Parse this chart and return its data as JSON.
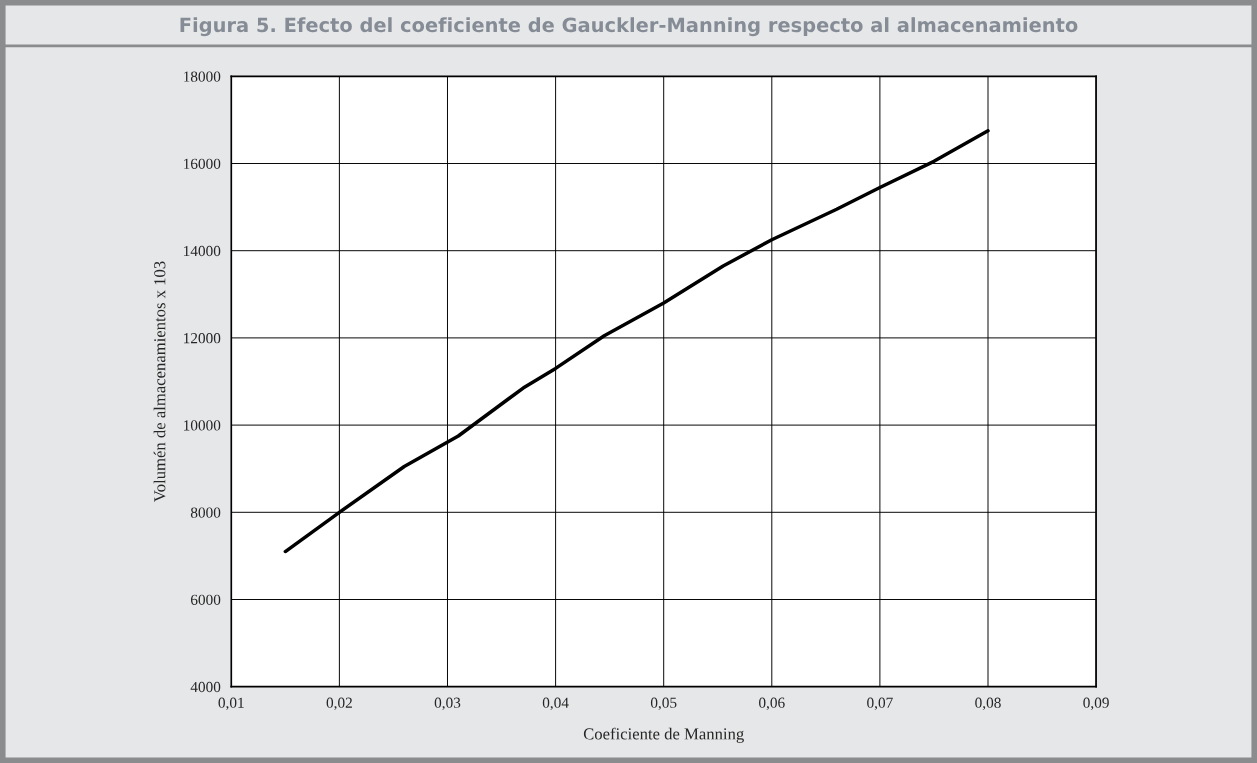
{
  "chart_data": {
    "type": "line",
    "title": "Figura 5. Efecto del coeficiente de Gauckler-Manning respecto al almacenamiento",
    "xlabel": "Coeficiente de Manning",
    "ylabel": "Volumén de almacenamientos x 103",
    "x": [
      0.015,
      0.02,
      0.026,
      0.031,
      0.037,
      0.04,
      0.0445,
      0.05,
      0.0555,
      0.06,
      0.066,
      0.07,
      0.075,
      0.08
    ],
    "series": [
      {
        "color": "#000000",
        "values": [
          7100,
          8000,
          9050,
          9750,
          10850,
          11300,
          12050,
          12800,
          13650,
          14250,
          14950,
          15450,
          16050,
          16750
        ]
      }
    ],
    "xlim": [
      0.01,
      0.09
    ],
    "xticks": [
      {
        "value": 0.01,
        "label": "0,01"
      },
      {
        "value": 0.02,
        "label": "0,02"
      },
      {
        "value": 0.03,
        "label": "0,03"
      },
      {
        "value": 0.04,
        "label": "0,04"
      },
      {
        "value": 0.05,
        "label": "0,05"
      },
      {
        "value": 0.06,
        "label": "0,06"
      },
      {
        "value": 0.07,
        "label": "0,07"
      },
      {
        "value": 0.08,
        "label": "0,08"
      },
      {
        "value": 0.09,
        "label": "0,09"
      }
    ],
    "ylim": [
      4000,
      18000
    ],
    "yticks": [
      4000,
      6000,
      8000,
      10000,
      12000,
      14000,
      16000,
      18000
    ],
    "grid": true,
    "marker": "none",
    "line_style": "solid"
  }
}
